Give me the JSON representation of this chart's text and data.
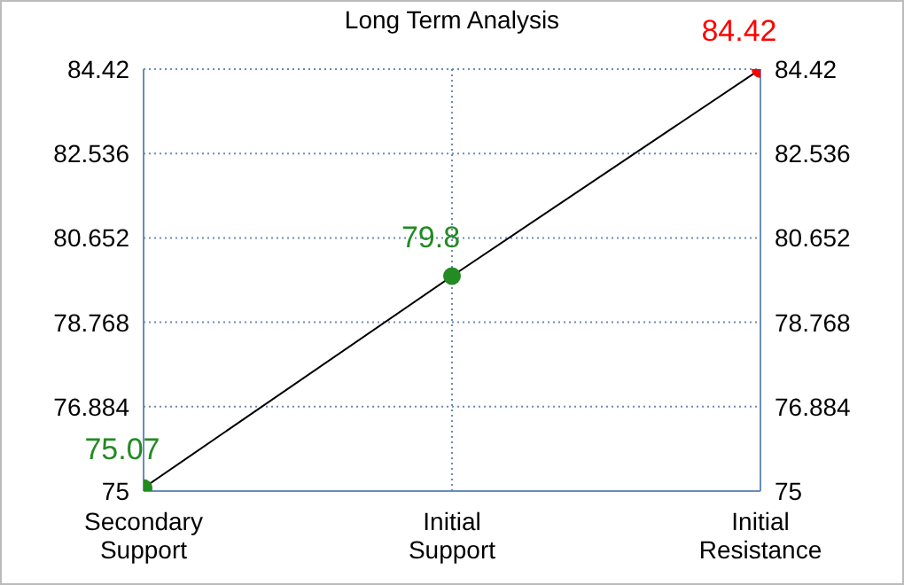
{
  "chart_data": {
    "type": "line",
    "title": "Long Term Analysis",
    "categories": [
      "Secondary Support",
      "Initial Support",
      "Initial Resistance"
    ],
    "series": [
      {
        "color": "#000000",
        "colors": [
          "#228b22",
          "#228b22",
          "#ff0000"
        ],
        "values": [
          75.07,
          79.8,
          84.42
        ]
      }
    ],
    "ylim": [
      75,
      84.42
    ],
    "yticks": [
      75,
      76.884,
      78.768,
      80.652,
      82.536,
      84.42
    ],
    "y2lim": [
      75,
      84.42
    ],
    "y2ticks": [
      75,
      76.884,
      78.768,
      80.652,
      82.536,
      84.42
    ],
    "grid": true,
    "legend": false,
    "marker": "circle",
    "line_style": "solid",
    "data_labels": true
  }
}
